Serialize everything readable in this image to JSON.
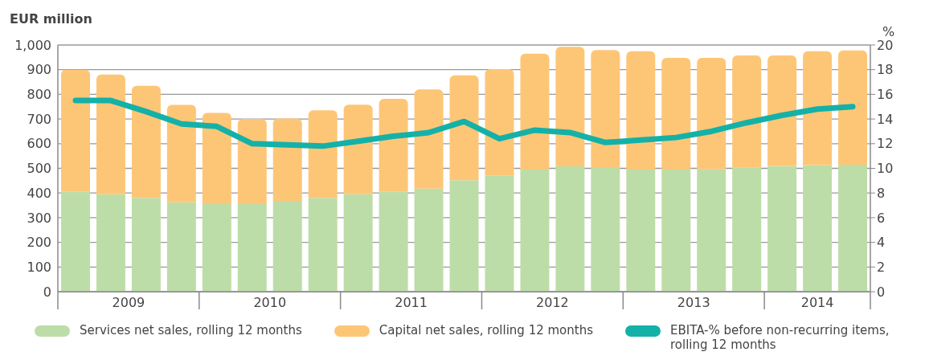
{
  "chart_data": {
    "type": "bar",
    "stacked": true,
    "ylabel": "EUR million",
    "y2label": "%",
    "x": [
      2009.125,
      2009.375,
      2009.625,
      2009.875,
      2010.125,
      2010.375,
      2010.625,
      2010.875,
      2011.125,
      2011.375,
      2011.625,
      2011.875,
      2012.125,
      2012.375,
      2012.625,
      2012.875,
      2013.125,
      2013.375,
      2013.625,
      2013.875,
      2014.125,
      2014.375,
      2014.625
    ],
    "xlim": [
      2009,
      2014.75
    ],
    "xticks": [
      {
        "value": 2009.5,
        "label": "2009"
      },
      {
        "value": 2010.5,
        "label": "2010"
      },
      {
        "value": 2011.5,
        "label": "2011"
      },
      {
        "value": 2012.5,
        "label": "2012"
      },
      {
        "value": 2013.5,
        "label": "2013"
      },
      {
        "value": 2014.375,
        "label": "2014"
      }
    ],
    "series": [
      {
        "name": "Services net sales, rolling 12 months",
        "color": "#bddda8",
        "values": [
          405,
          395,
          380,
          362,
          355,
          355,
          368,
          380,
          395,
          405,
          418,
          452,
          470,
          495,
          508,
          502,
          495,
          495,
          497,
          503,
          510,
          513,
          515
        ]
      },
      {
        "name": "Capital net sales, rolling 12 months",
        "color": "#fdc677",
        "values": [
          495,
          485,
          455,
          395,
          370,
          345,
          334,
          355,
          363,
          377,
          402,
          425,
          432,
          470,
          485,
          478,
          480,
          453,
          451,
          455,
          448,
          462,
          463
        ]
      },
      {
        "name": "EBITA-% before non-recurring items, rolling 12 months",
        "type": "line",
        "axis": "y2",
        "color": "#14b1a8",
        "values": [
          15.5,
          15.5,
          14.6,
          13.6,
          13.4,
          12.0,
          11.9,
          11.8,
          12.2,
          12.6,
          12.9,
          13.8,
          12.4,
          13.1,
          12.9,
          12.1,
          12.3,
          12.5,
          13.0,
          13.7,
          14.3,
          14.8,
          15.0
        ]
      }
    ],
    "ylim": [
      0,
      1000
    ],
    "yticks": [
      0,
      100,
      200,
      300,
      400,
      500,
      600,
      700,
      800,
      900,
      {
        "value": 1000,
        "label": "1,000"
      }
    ],
    "y2lim": [
      0,
      20
    ],
    "y2ticks": [
      0,
      2,
      4,
      6,
      8,
      10,
      12,
      14,
      16,
      18,
      20
    ],
    "grid": "y",
    "legend": "bottom"
  }
}
